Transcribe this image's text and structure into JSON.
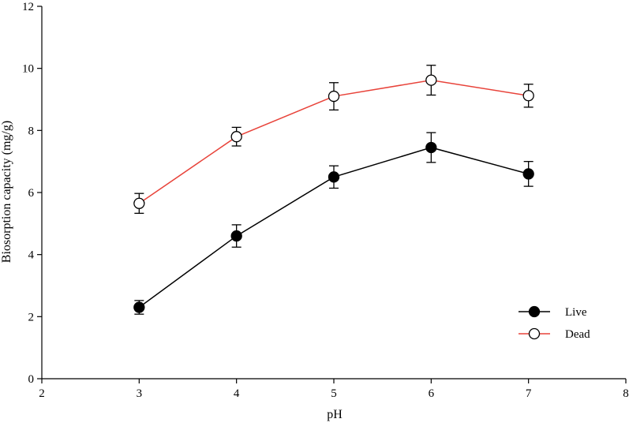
{
  "chart_data": {
    "type": "line",
    "title": "",
    "xlabel": "pH",
    "ylabel": "Biosorption capacity (mg/g)",
    "xlim": [
      2,
      8
    ],
    "ylim": [
      0,
      12
    ],
    "x_ticks": [
      "2",
      "3",
      "4",
      "5",
      "6",
      "7",
      "8"
    ],
    "y_ticks": [
      "0",
      "2",
      "4",
      "6",
      "8",
      "10",
      "12"
    ],
    "grid": false,
    "legend_position": "bottom-right",
    "series": [
      {
        "name": "Live",
        "color": "#000000",
        "marker": "filled-circle",
        "x": [
          3,
          4,
          5,
          6,
          7
        ],
        "y": [
          2.3,
          4.6,
          6.5,
          7.45,
          6.6
        ],
        "error": [
          0.22,
          0.36,
          0.36,
          0.48,
          0.4
        ]
      },
      {
        "name": "Dead",
        "color": "#e8433a",
        "marker": "open-circle",
        "x": [
          3,
          4,
          5,
          6,
          7
        ],
        "y": [
          5.65,
          7.8,
          9.1,
          9.62,
          9.12
        ],
        "error": [
          0.32,
          0.3,
          0.44,
          0.48,
          0.37
        ]
      }
    ]
  }
}
